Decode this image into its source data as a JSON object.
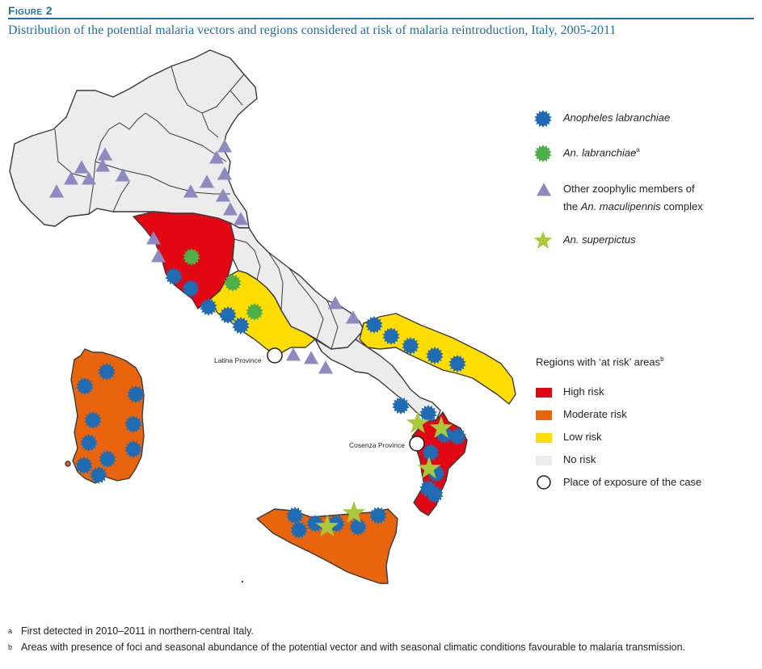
{
  "figure": {
    "label": "Figure 2",
    "title": "Distribution of the potential malaria vectors and regions considered at risk of malaria reintroduction, Italy, 2005-2011"
  },
  "colors": {
    "high_risk": "#e30613",
    "moderate_risk": "#e8650e",
    "low_risk": "#ffdd00",
    "no_risk": "#ececec",
    "border": "#3a3a3a",
    "labranchiae": "#1f6cb4",
    "labranchiae_new": "#4fb04a",
    "maculipennis": "#8e89c0",
    "superpictus": "#a7c93a",
    "title": "#1f6fa7"
  },
  "legend": {
    "species": [
      {
        "icon": "blue-burst",
        "label": "Anopheles labranchiae",
        "italic": true
      },
      {
        "icon": "green-burst",
        "label": "An. labranchiae",
        "sup": "a",
        "italic": true
      },
      {
        "icon": "purple-triangle",
        "label_line1": "Other zoophylic members of",
        "label_line2_pre": "the ",
        "label_line2_italic": "An. maculipennis",
        "label_line2_post": " complex"
      },
      {
        "icon": "green-star",
        "label": "An. superpictus",
        "italic": true
      }
    ],
    "regions_heading": "Regions with ‘at risk’ areas",
    "regions_heading_sup": "b",
    "regions": [
      {
        "label": "High risk"
      },
      {
        "label": "Moderate risk"
      },
      {
        "label": "Low risk"
      },
      {
        "label": "No risk"
      },
      {
        "label": "Place of exposure of the case"
      }
    ]
  },
  "places": {
    "latina": "Latina Province",
    "cosenza": "Cosenza Province"
  },
  "footnotes": [
    {
      "mark": "a",
      "text": "First detected in 2010–2011 in northern-central Italy."
    },
    {
      "mark": "b",
      "text": "Areas with presence of foci and seasonal abundance of the potential vector and with seasonal climatic conditions favourable to malaria transmission."
    }
  ]
}
